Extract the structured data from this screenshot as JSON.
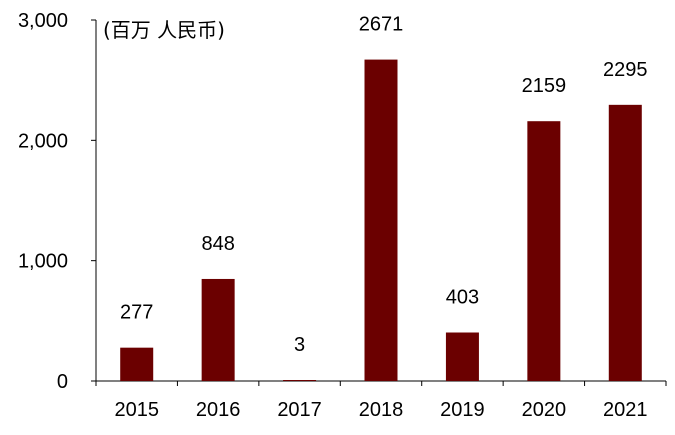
{
  "chart_data": {
    "type": "bar",
    "title": "",
    "unit_label": "(百万 人民币)",
    "xlabel": "",
    "ylabel": "",
    "categories": [
      "2015",
      "2016",
      "2017",
      "2018",
      "2019",
      "2020",
      "2021"
    ],
    "values": [
      277,
      848,
      3,
      2671,
      403,
      2159,
      2295
    ],
    "data_labels": [
      "277",
      "848",
      "3",
      "2671",
      "403",
      "2159",
      "2295"
    ],
    "ylim": [
      0,
      3000
    ],
    "yticks": [
      0,
      1000,
      2000,
      3000
    ],
    "ytick_labels": [
      "0",
      "1,000",
      "2,000",
      "3,000"
    ],
    "grid": false,
    "legend": "none",
    "bar_color": "#6b0000"
  }
}
